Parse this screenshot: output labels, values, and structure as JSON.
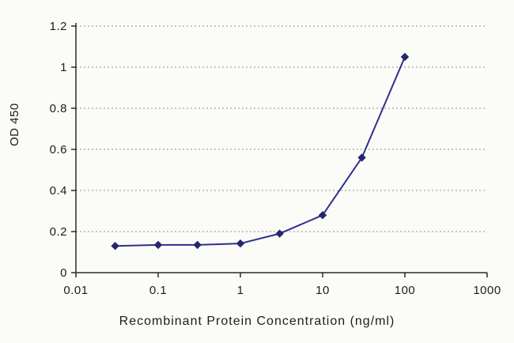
{
  "chart_data": {
    "type": "line",
    "title": "",
    "xlabel": "Recombinant Protein Concentration (ng/ml)",
    "ylabel": "OD 450",
    "x_scale": "log",
    "xlim": [
      0.01,
      1000
    ],
    "ylim": [
      0,
      1.2
    ],
    "x_ticks": [
      0.01,
      0.1,
      1,
      10,
      100,
      1000
    ],
    "x_tick_labels": [
      "0.01",
      "0.1",
      "1",
      "10",
      "100",
      "1000"
    ],
    "y_ticks": [
      0,
      0.2,
      0.4,
      0.6,
      0.8,
      1,
      1.2
    ],
    "y_tick_labels": [
      "0",
      "0.2",
      "0.4",
      "0.6",
      "0.8",
      "1",
      "1.2"
    ],
    "grid": "horizontal-dotted",
    "legend": "none",
    "colors": {
      "line": "#2f2f8f",
      "marker": "#26266e",
      "axis": "#2a2a2a",
      "grid": "#8f8f8f",
      "text": "#1c1c1c"
    },
    "series": [
      {
        "name": "OD450",
        "marker": "diamond",
        "x": [
          0.03,
          0.1,
          0.3,
          1,
          3,
          10,
          30,
          100
        ],
        "y": [
          0.13,
          0.135,
          0.135,
          0.142,
          0.19,
          0.28,
          0.56,
          1.05
        ]
      }
    ]
  }
}
